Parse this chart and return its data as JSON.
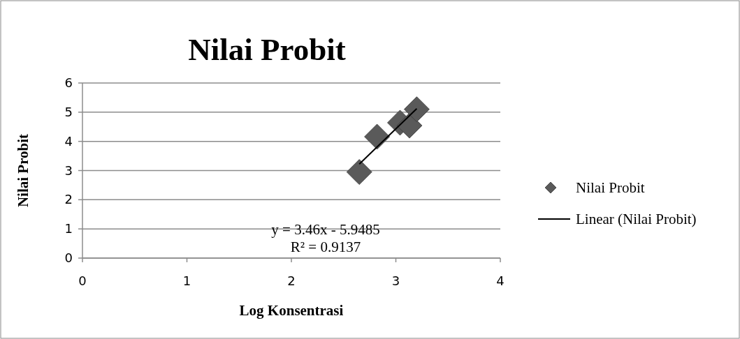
{
  "chart_data": {
    "type": "scatter",
    "title": "Nilai Probit",
    "xlabel": "Log Konsentrasi",
    "ylabel": "Nilai Probit",
    "series": [
      {
        "name": "Nilai Probit",
        "color": "#5a5a5a",
        "marker": "diamond",
        "x": [
          2.65,
          2.82,
          3.04,
          3.13,
          3.2
        ],
        "values": [
          2.95,
          4.16,
          4.64,
          4.54,
          5.1
        ]
      },
      {
        "name": "Linear (Nilai Probit)",
        "type": "line",
        "color": "#000000",
        "marker": "none",
        "x": [
          2.65,
          3.2
        ],
        "values": [
          3.22,
          5.12
        ]
      }
    ],
    "annotations": [
      "y = 3.46x - 5.9485",
      "R² = 0.9137"
    ],
    "xlim": [
      0,
      4
    ],
    "xticks": [
      0,
      1,
      2,
      3,
      4
    ],
    "ylim": [
      0,
      6
    ],
    "yticks": [
      0,
      1,
      2,
      3,
      4,
      5,
      6
    ],
    "grid": "y",
    "legend": "right"
  }
}
